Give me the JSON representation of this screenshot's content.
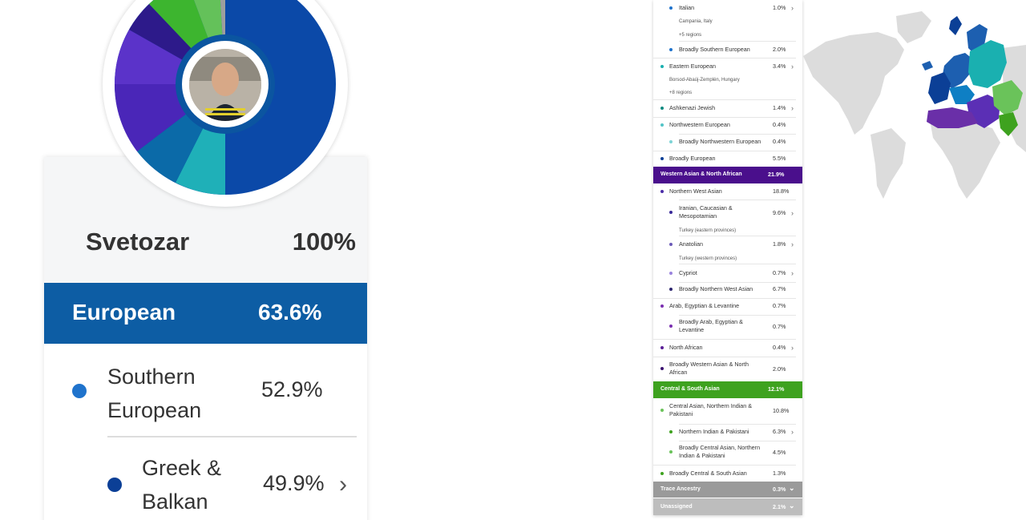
{
  "profile": {
    "name": "Svetozar",
    "total_pct": "100%"
  },
  "big_card": {
    "european_label": "European",
    "european_pct": "63.6%",
    "southern_label": "Southern European",
    "southern_pct": "52.9%",
    "greek_label": "Greek & Balkan",
    "greek_pct": "49.9%",
    "chevron": "›"
  },
  "table": {
    "italian": {
      "label": "Italian",
      "pct": "1.0%",
      "sub1": "Campania, Italy",
      "sub2": "+5 regions"
    },
    "broad_southern": {
      "label": "Broadly Southern European",
      "pct": "2.0%"
    },
    "eastern": {
      "label": "Eastern European",
      "pct": "3.4%",
      "sub1": "Borsod-Abaúj-Zemplén, Hungary",
      "sub2": "+8 regions"
    },
    "ashkenazi": {
      "label": "Ashkenazi Jewish",
      "pct": "1.4%"
    },
    "northwestern": {
      "label": "Northwestern European",
      "pct": "0.4%"
    },
    "broad_northwestern": {
      "label": "Broadly Northwestern European",
      "pct": "0.4%"
    },
    "broad_european": {
      "label": "Broadly European",
      "pct": "5.5%"
    },
    "wana_band": {
      "label": "Western Asian & North African",
      "pct": "21.9%"
    },
    "nw_asian": {
      "label": "Northern West Asian",
      "pct": "18.8%"
    },
    "iranian": {
      "label": "Iranian, Caucasian & Mesopotamian",
      "pct": "9.6%",
      "sub": "Turkey (eastern provinces)"
    },
    "anatolian": {
      "label": "Anatolian",
      "pct": "1.8%",
      "sub": "Turkey (western provinces)"
    },
    "cypriot": {
      "label": "Cypriot",
      "pct": "0.7%"
    },
    "broad_nwa": {
      "label": "Broadly Northern West Asian",
      "pct": "6.7%"
    },
    "arab": {
      "label": "Arab, Egyptian & Levantine",
      "pct": "0.7%"
    },
    "broad_arab": {
      "label": "Broadly Arab, Egyptian & Levantine",
      "pct": "0.7%"
    },
    "north_african": {
      "label": "North African",
      "pct": "0.4%"
    },
    "broad_wana": {
      "label": "Broadly Western Asian & North African",
      "pct": "2.0%"
    },
    "csa_band": {
      "label": "Central & South Asian",
      "pct": "12.1%"
    },
    "central_asian": {
      "label": "Central Asian, Northern Indian & Pakistani",
      "pct": "10.8%"
    },
    "northern_indian": {
      "label": "Northern Indian & Pakistani",
      "pct": "6.3%"
    },
    "broad_central_asian": {
      "label": "Broadly Central Asian, Northern Indian & Pakistani",
      "pct": "4.5%"
    },
    "broad_csa": {
      "label": "Broadly Central & South Asian",
      "pct": "1.3%"
    },
    "trace_band": {
      "label": "Trace Ancestry",
      "pct": "0.3%"
    },
    "unassigned_band": {
      "label": "Unassigned",
      "pct": "2.1%"
    },
    "chevron": "›",
    "chevron_down": "⌄"
  },
  "colors": {
    "european": "#0d5da4",
    "southern": "#1f73cc",
    "greek": "#0b3f96",
    "wana": "#4a0f8c",
    "csa": "#3ea21f",
    "trace": "#9a9a9a",
    "unassigned": "#bdbdbd"
  }
}
